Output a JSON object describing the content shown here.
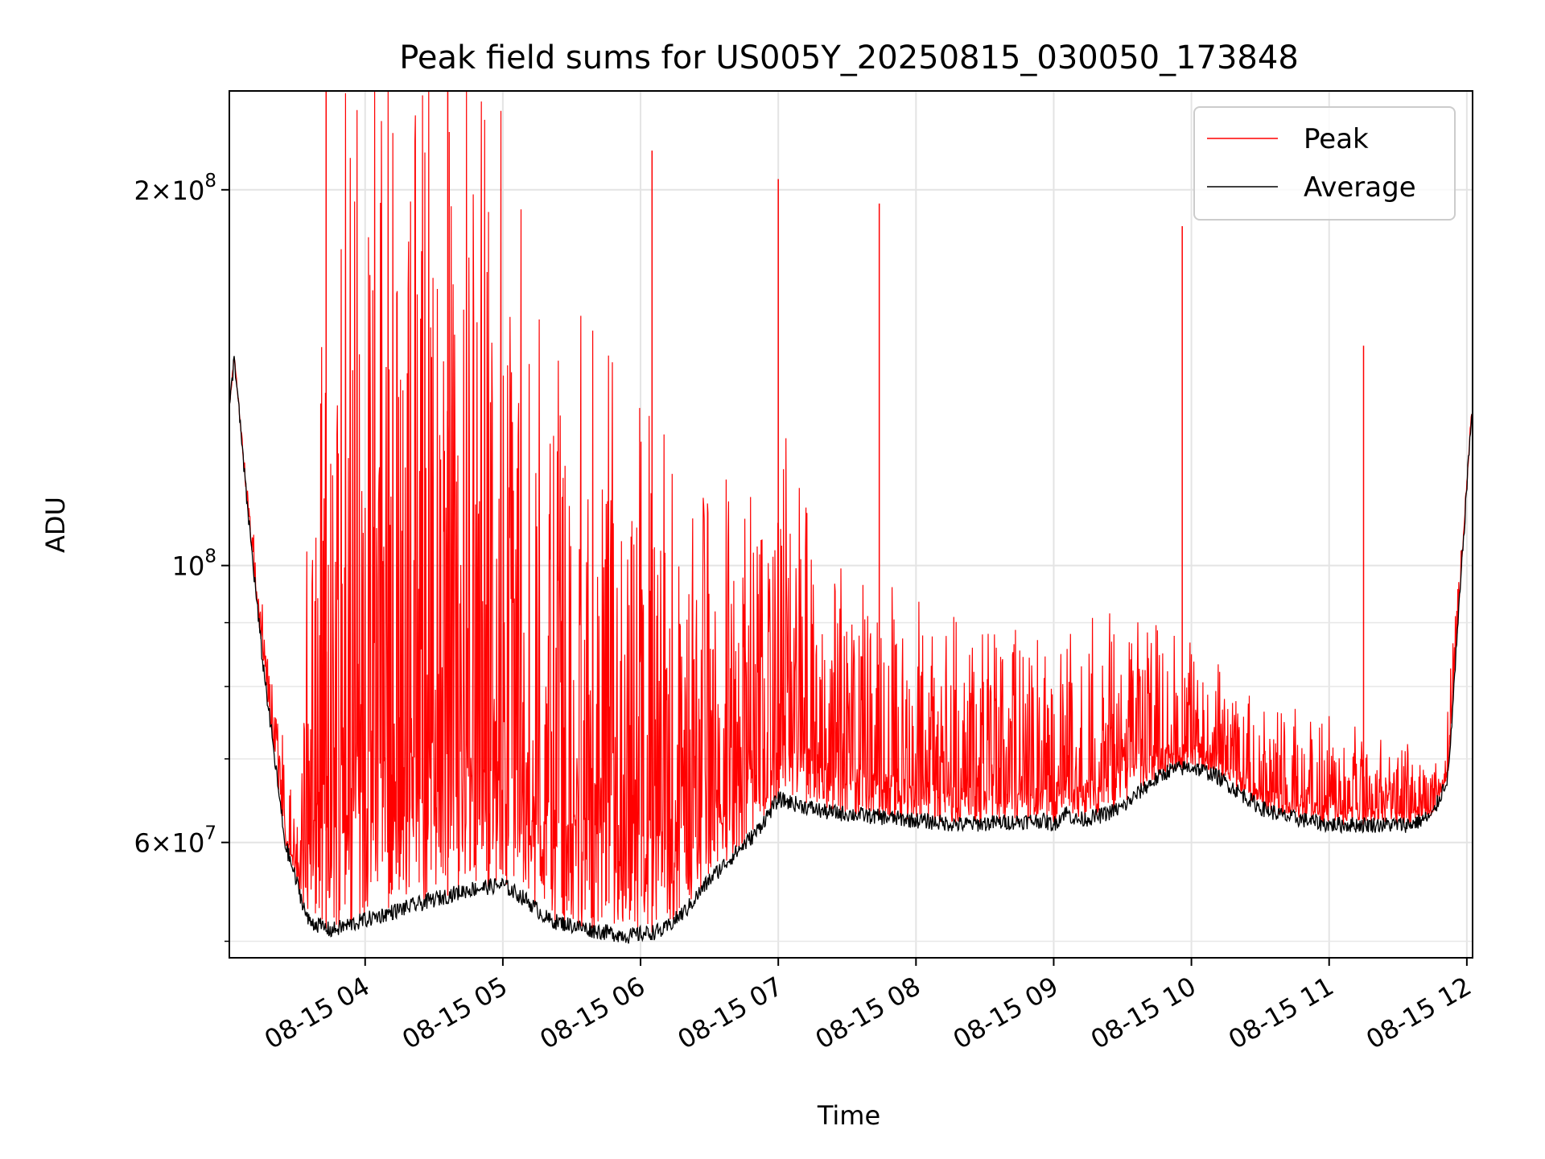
{
  "chart_data": {
    "type": "line",
    "title": "Peak field sums for US005Y_20250815_030050_173848",
    "xlabel": "Time",
    "ylabel": "ADU",
    "x_range": [
      "2025-08-15 03:00:50",
      "2025-08-15 12:02:30"
    ],
    "y_scale": "log",
    "ylim": [
      48500000,
      240000000
    ],
    "grid": true,
    "legend_position": "top-right",
    "x_ticks": [
      "08-15 04",
      "08-15 05",
      "08-15 06",
      "08-15 07",
      "08-15 08",
      "08-15 09",
      "08-15 10",
      "08-15 11",
      "08-15 12"
    ],
    "y_ticks_major": [
      {
        "value": 200000000,
        "base": "2×10",
        "exp": "8"
      },
      {
        "value": 100000000,
        "base": "10",
        "exp": "8"
      },
      {
        "value": 60000000,
        "base": "6×10",
        "exp": "7"
      }
    ],
    "series": [
      {
        "name": "Peak",
        "color": "#ff0000",
        "x": [
          "2025-08-15 03:00",
          "2025-08-15 03:03",
          "2025-08-15 03:10",
          "2025-08-15 03:20",
          "2025-08-15 03:30",
          "2025-08-15 03:40",
          "2025-08-15 04:00",
          "2025-08-15 04:30",
          "2025-08-15 05:00",
          "2025-08-15 05:15",
          "2025-08-15 05:30",
          "2025-08-15 06:00",
          "2025-08-15 06:30",
          "2025-08-15 07:00",
          "2025-08-15 07:30",
          "2025-08-15 08:00",
          "2025-08-15 08:30",
          "2025-08-15 09:00",
          "2025-08-15 09:30",
          "2025-08-15 10:00",
          "2025-08-15 10:30",
          "2025-08-15 11:00",
          "2025-08-15 11:30",
          "2025-08-15 11:50",
          "2025-08-15 12:02"
        ],
        "values": [
          127000000,
          145000000,
          110000000,
          78000000,
          60000000,
          150000000,
          180000000,
          175000000,
          160000000,
          130000000,
          120000000,
          110000000,
          95000000,
          110000000,
          90000000,
          85000000,
          82000000,
          80000000,
          85000000,
          82000000,
          75000000,
          72000000,
          70000000,
          68000000,
          132000000
        ],
        "extreme_spikes": [
          {
            "x": "2025-08-15 03:43",
            "value": 240000000
          },
          {
            "x": "2025-08-15 04:36",
            "value": 240000000
          },
          {
            "x": "2025-08-15 06:05",
            "value": 215000000
          },
          {
            "x": "2025-08-15 07:00",
            "value": 204000000
          },
          {
            "x": "2025-08-15 07:44",
            "value": 195000000
          },
          {
            "x": "2025-08-15 09:56",
            "value": 187000000
          },
          {
            "x": "2025-08-15 11:15",
            "value": 150000000
          }
        ]
      },
      {
        "name": "Average",
        "color": "#000000",
        "x": [
          "2025-08-15 03:00",
          "2025-08-15 03:03",
          "2025-08-15 03:08",
          "2025-08-15 03:15",
          "2025-08-15 03:25",
          "2025-08-15 03:35",
          "2025-08-15 03:45",
          "2025-08-15 04:00",
          "2025-08-15 04:15",
          "2025-08-15 04:30",
          "2025-08-15 04:45",
          "2025-08-15 05:00",
          "2025-08-15 05:10",
          "2025-08-15 05:20",
          "2025-08-15 05:40",
          "2025-08-15 05:55",
          "2025-08-15 06:10",
          "2025-08-15 06:20",
          "2025-08-15 06:30",
          "2025-08-15 06:40",
          "2025-08-15 06:50",
          "2025-08-15 07:00",
          "2025-08-15 07:20",
          "2025-08-15 07:40",
          "2025-08-15 08:00",
          "2025-08-15 08:20",
          "2025-08-15 08:40",
          "2025-08-15 08:55",
          "2025-08-15 09:00",
          "2025-08-15 09:05",
          "2025-08-15 09:10",
          "2025-08-15 09:20",
          "2025-08-15 09:30",
          "2025-08-15 09:40",
          "2025-08-15 09:50",
          "2025-08-15 10:00",
          "2025-08-15 10:10",
          "2025-08-15 10:20",
          "2025-08-15 10:30",
          "2025-08-15 10:40",
          "2025-08-15 10:50",
          "2025-08-15 11:00",
          "2025-08-15 11:20",
          "2025-08-15 11:35",
          "2025-08-15 11:45",
          "2025-08-15 11:52",
          "2025-08-15 11:57",
          "2025-08-15 12:02"
        ],
        "values": [
          128000000,
          147000000,
          115000000,
          85000000,
          60000000,
          52000000,
          51000000,
          52000000,
          53000000,
          54000000,
          55000000,
          55500000,
          54000000,
          52000000,
          51000000,
          50500000,
          51000000,
          53000000,
          56000000,
          58500000,
          61000000,
          65000000,
          63500000,
          63000000,
          62500000,
          62000000,
          62300000,
          62500000,
          62000000,
          63500000,
          62500000,
          63000000,
          64000000,
          66500000,
          68500000,
          69000000,
          68000000,
          66000000,
          64000000,
          63000000,
          62500000,
          62000000,
          62000000,
          62000000,
          63000000,
          68000000,
          95000000,
          132000000
        ]
      }
    ]
  }
}
